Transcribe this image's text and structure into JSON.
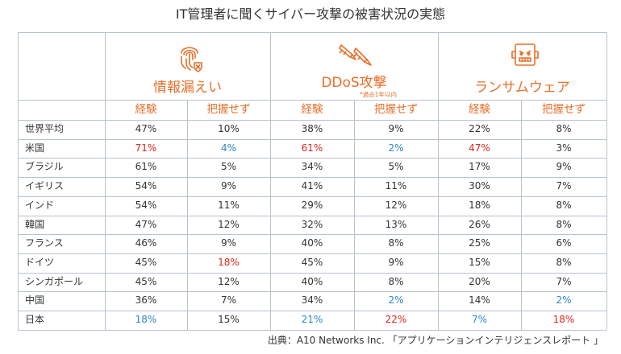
{
  "title": "IT管理者に聞くサイバー攻撃の被害状況の実態",
  "source": "出典：A10 Networks Inc. 「アプリケーションインテリジェンスレポート 」",
  "colors": {
    "accent": "#e8702a",
    "high": "#e0261c",
    "low": "#2e86c8",
    "normal": "#333333",
    "grid": "#b8c2cf"
  },
  "groups": [
    {
      "label": "情報漏えい",
      "note": "",
      "icon": "fingerprint-shield-icon"
    },
    {
      "label": "DDoS攻撃",
      "note": "*過去1年以内",
      "icon": "missiles-icon"
    },
    {
      "label": "ランサムウェア",
      "note": "",
      "icon": "robot-face-icon"
    }
  ],
  "chart_data": {
    "type": "table",
    "title": "IT管理者に聞くサイバー攻撃の被害状況の実態",
    "column_groups": [
      "情報漏えい",
      "DDoS攻撃",
      "ランサムウェア"
    ],
    "columns": [
      "経験",
      "把握せず",
      "経験",
      "把握せず",
      "経験",
      "把握せず"
    ],
    "rows": [
      {
        "country": "世界平均",
        "values": [
          "47%",
          "10%",
          "38%",
          "9%",
          "22%",
          "8%"
        ],
        "highlight": [
          "",
          "",
          "",
          "",
          "",
          ""
        ]
      },
      {
        "country": "米国",
        "values": [
          "71%",
          "4%",
          "61%",
          "2%",
          "47%",
          "3%"
        ],
        "highlight": [
          "high",
          "low",
          "high",
          "low",
          "high",
          ""
        ]
      },
      {
        "country": "ブラジル",
        "values": [
          "61%",
          "5%",
          "34%",
          "5%",
          "17%",
          "9%"
        ],
        "highlight": [
          "",
          "",
          "",
          "",
          "",
          ""
        ]
      },
      {
        "country": "イギリス",
        "values": [
          "54%",
          "9%",
          "41%",
          "11%",
          "30%",
          "7%"
        ],
        "highlight": [
          "",
          "",
          "",
          "",
          "",
          ""
        ]
      },
      {
        "country": "インド",
        "values": [
          "54%",
          "11%",
          "29%",
          "12%",
          "18%",
          "8%"
        ],
        "highlight": [
          "",
          "",
          "",
          "",
          "",
          ""
        ]
      },
      {
        "country": "韓国",
        "values": [
          "47%",
          "12%",
          "32%",
          "13%",
          "26%",
          "8%"
        ],
        "highlight": [
          "",
          "",
          "",
          "",
          "",
          ""
        ]
      },
      {
        "country": "フランス",
        "values": [
          "46%",
          "9%",
          "40%",
          "8%",
          "25%",
          "6%"
        ],
        "highlight": [
          "",
          "",
          "",
          "",
          "",
          ""
        ]
      },
      {
        "country": "ドイツ",
        "values": [
          "45%",
          "18%",
          "45%",
          "9%",
          "15%",
          "8%"
        ],
        "highlight": [
          "",
          "high",
          "",
          "",
          "",
          ""
        ]
      },
      {
        "country": "シンガポール",
        "values": [
          "45%",
          "12%",
          "40%",
          "8%",
          "20%",
          "7%"
        ],
        "highlight": [
          "",
          "",
          "",
          "",
          "",
          ""
        ]
      },
      {
        "country": "中国",
        "values": [
          "36%",
          "7%",
          "34%",
          "2%",
          "14%",
          "2%"
        ],
        "highlight": [
          "",
          "",
          "",
          "low",
          "",
          "low"
        ]
      },
      {
        "country": "日本",
        "values": [
          "18%",
          "15%",
          "21%",
          "22%",
          "7%",
          "18%"
        ],
        "highlight": [
          "low",
          "",
          "low",
          "high",
          "low",
          "high"
        ]
      }
    ]
  }
}
